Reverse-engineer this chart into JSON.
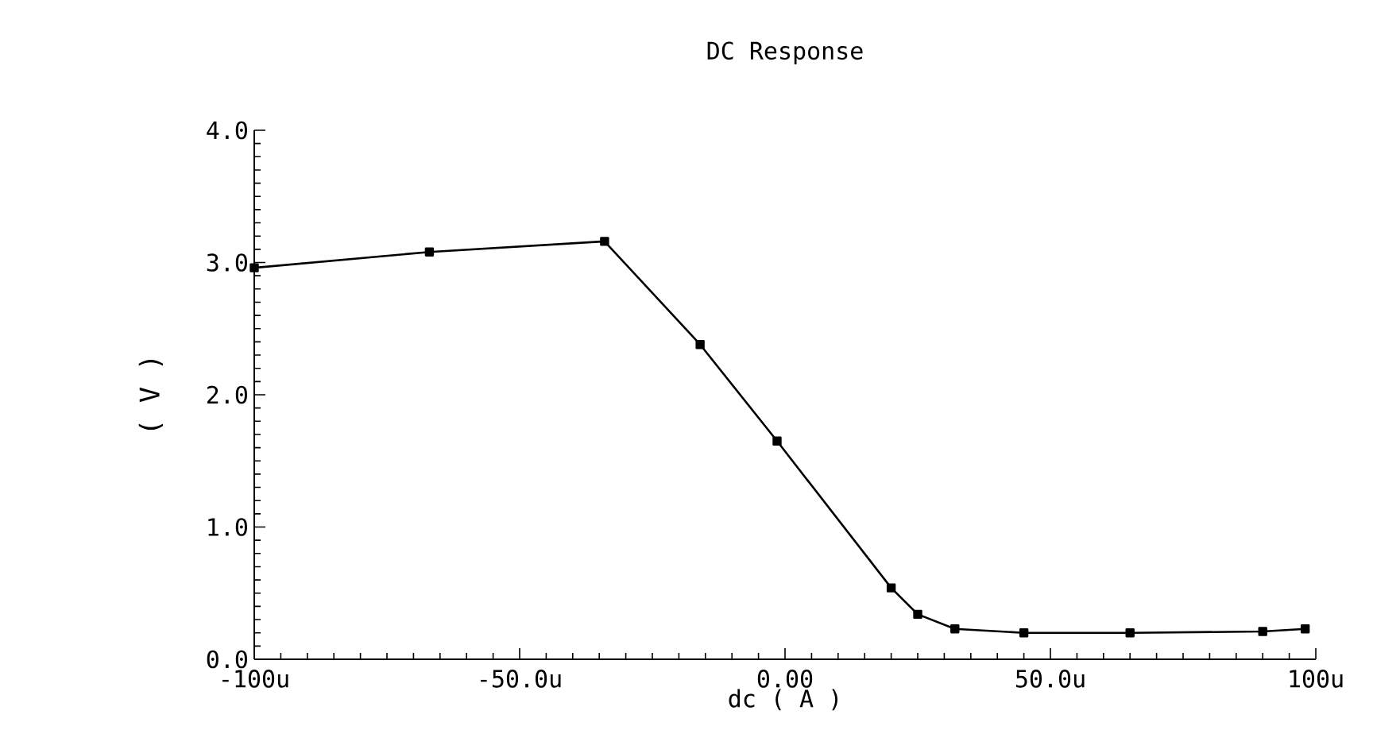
{
  "chart_data": {
    "type": "line",
    "title": "DC Response",
    "xlabel": "dc ( A )",
    "ylabel": "( V )",
    "x": [
      -100,
      -67,
      -34,
      -16,
      -1.5,
      20,
      25,
      32,
      45,
      65,
      90,
      98
    ],
    "series": [
      {
        "color": "#000000",
        "values": [
          2.96,
          3.08,
          3.16,
          2.38,
          1.65,
          0.54,
          0.34,
          0.23,
          0.2,
          0.2,
          0.21,
          0.23
        ]
      }
    ],
    "xlim": [
      -100,
      100
    ],
    "xticks": [
      {
        "value": -100,
        "label": "-100u"
      },
      {
        "value": -50,
        "label": "-50.0u"
      },
      {
        "value": 0,
        "label": "0.00"
      },
      {
        "value": 50,
        "label": "50.0u"
      },
      {
        "value": 100,
        "label": "100u"
      }
    ],
    "ylim": [
      0,
      4
    ],
    "yticks": [
      {
        "value": 0,
        "label": "0.0"
      },
      {
        "value": 1,
        "label": "1.0"
      },
      {
        "value": 2,
        "label": "2.0"
      },
      {
        "value": 3,
        "label": "3.0"
      },
      {
        "value": 4,
        "label": "4.0"
      }
    ],
    "grid": false,
    "marker": "square",
    "line_style": "solid"
  }
}
